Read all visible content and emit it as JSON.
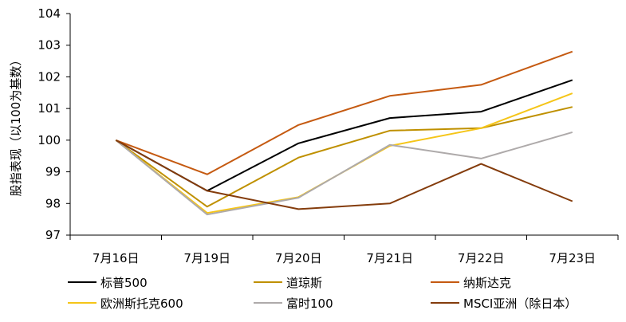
{
  "chart_data": {
    "type": "line",
    "ylabel": "股指表现（以100为基数）",
    "x": [
      "7月16日",
      "7月19日",
      "7月20日",
      "7月21日",
      "7月22日",
      "7月23日"
    ],
    "ylim": [
      97,
      104
    ],
    "yticks": [
      97,
      98,
      99,
      100,
      101,
      102,
      103,
      104
    ],
    "grid": false,
    "legend_position": "bottom",
    "series": [
      {
        "name": "标普500",
        "color": "#000000",
        "values": [
          100.0,
          98.4,
          99.9,
          100.7,
          100.9,
          101.9
        ]
      },
      {
        "name": "道琼斯",
        "color": "#BF9000",
        "values": [
          100.0,
          97.9,
          99.45,
          100.3,
          100.38,
          101.05
        ]
      },
      {
        "name": "纳斯达克",
        "color": "#C55A11",
        "values": [
          100.0,
          98.92,
          100.48,
          101.4,
          101.75,
          102.8
        ]
      },
      {
        "name": "欧洲斯托克600",
        "color": "#F5C518",
        "values": [
          100.0,
          97.7,
          98.2,
          99.82,
          100.38,
          101.48
        ]
      },
      {
        "name": "富时100",
        "color": "#AEAAAA",
        "values": [
          100.0,
          97.65,
          98.18,
          99.85,
          99.42,
          100.25
        ]
      },
      {
        "name": "MSCI亚洲（除日本）",
        "color": "#843C0C",
        "values": [
          100.0,
          98.4,
          97.82,
          98.0,
          99.25,
          98.07
        ]
      }
    ]
  }
}
